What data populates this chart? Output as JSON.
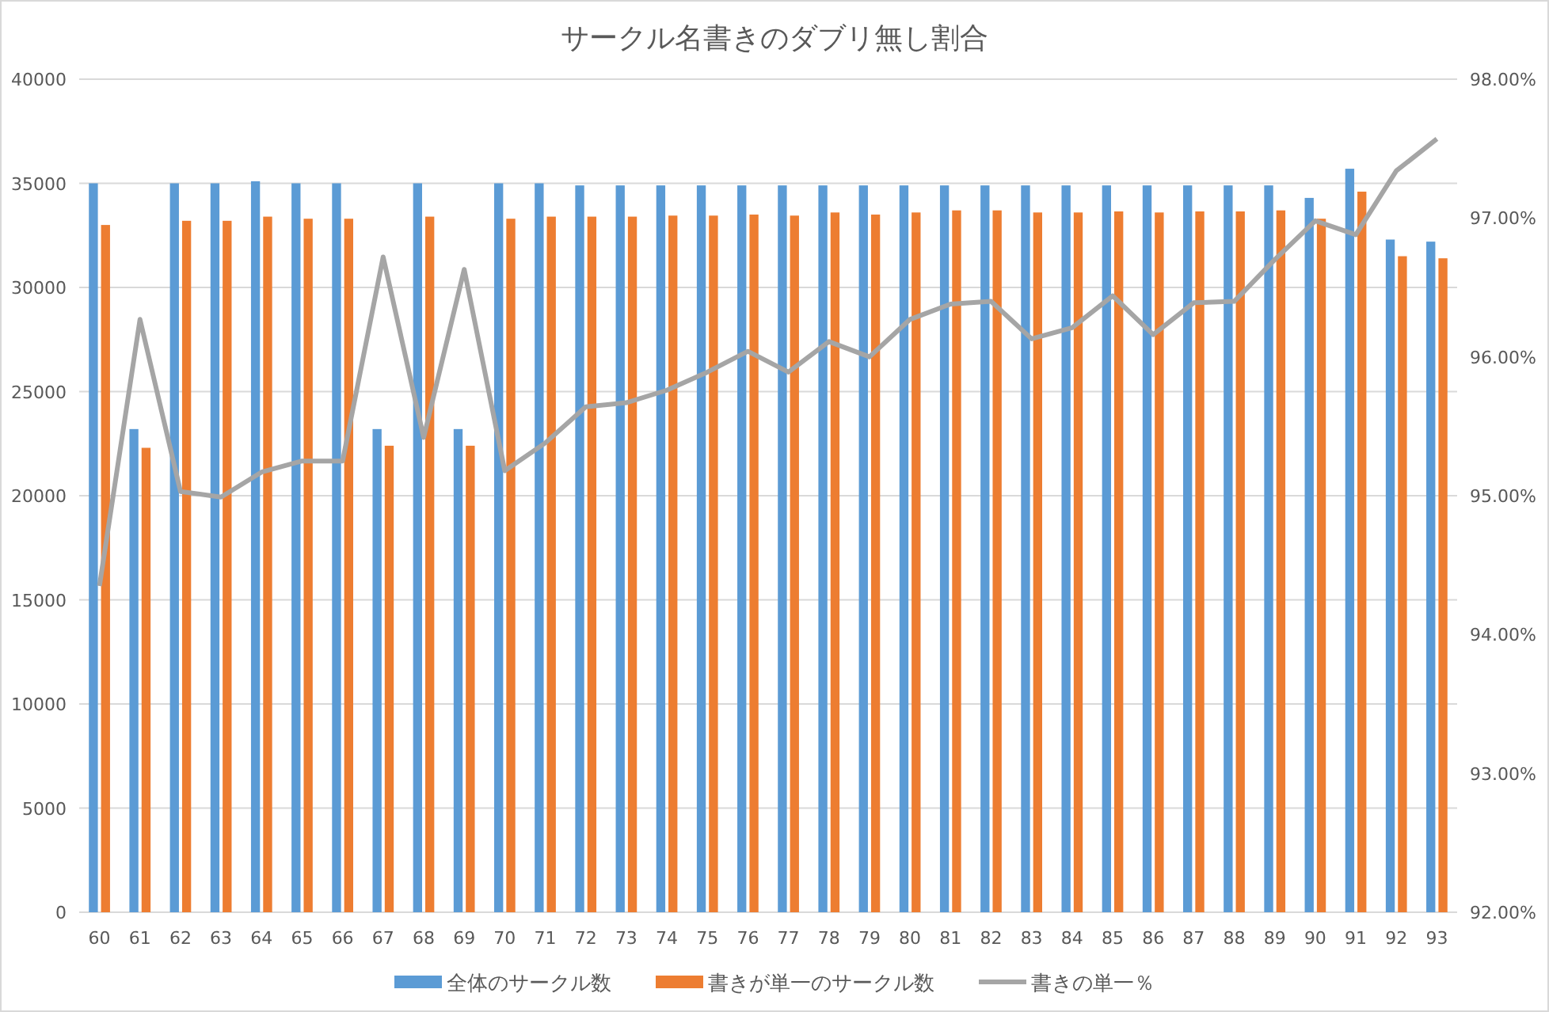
{
  "chart_data": {
    "type": "bar",
    "title": "サークル名書きのダブリ無し割合",
    "categories": [
      "60",
      "61",
      "62",
      "63",
      "64",
      "65",
      "66",
      "67",
      "68",
      "69",
      "70",
      "71",
      "72",
      "73",
      "74",
      "75",
      "76",
      "77",
      "78",
      "79",
      "80",
      "81",
      "82",
      "83",
      "84",
      "85",
      "86",
      "87",
      "88",
      "89",
      "90",
      "91",
      "92",
      "93"
    ],
    "series": [
      {
        "name": "全体のサークル数",
        "color": "#5b9bd5",
        "values": [
          35000,
          23200,
          35000,
          35000,
          35100,
          35000,
          35000,
          23200,
          35000,
          23200,
          35000,
          35000,
          34900,
          34900,
          34900,
          34900,
          34900,
          34900,
          34900,
          34900,
          34900,
          34900,
          34900,
          34900,
          34900,
          34900,
          34900,
          34900,
          34900,
          34900,
          34300,
          35700,
          32300,
          32200
        ]
      },
      {
        "name": "書きが単一のサークル数",
        "color": "#ed7d31",
        "values": [
          33000,
          22300,
          33200,
          33200,
          33400,
          33300,
          33300,
          22400,
          33400,
          22400,
          33300,
          33400,
          33400,
          33400,
          33450,
          33450,
          33500,
          33450,
          33600,
          33500,
          33600,
          33700,
          33700,
          33600,
          33600,
          33650,
          33600,
          33650,
          33650,
          33700,
          33300,
          34600,
          31500,
          31400
        ]
      },
      {
        "name": "書きの単一％",
        "type": "line",
        "axis": "y2",
        "color": "#a5a5a5",
        "values": [
          94.35,
          96.27,
          95.03,
          94.99,
          95.17,
          95.25,
          95.25,
          96.72,
          95.42,
          96.63,
          95.18,
          95.38,
          95.64,
          95.67,
          95.76,
          95.89,
          96.04,
          95.89,
          96.11,
          96.0,
          96.27,
          96.38,
          96.4,
          96.13,
          96.21,
          96.44,
          96.16,
          96.39,
          96.4,
          96.7,
          96.98,
          96.88,
          97.34,
          97.57
        ]
      }
    ],
    "ylim": [
      0,
      40000
    ],
    "yticks": [
      0,
      5000,
      10000,
      15000,
      20000,
      25000,
      30000,
      35000,
      40000
    ],
    "y2lim": [
      92,
      98
    ],
    "y2ticks": [
      {
        "value": 92,
        "label": "92.00%"
      },
      {
        "value": 93,
        "label": "93.00%"
      },
      {
        "value": 94,
        "label": "94.00%"
      },
      {
        "value": 95,
        "label": "95.00%"
      },
      {
        "value": 96,
        "label": "96.00%"
      },
      {
        "value": 97,
        "label": "97.00%"
      },
      {
        "value": 98,
        "label": "98.00%"
      }
    ],
    "grid": "y",
    "legend": "bottom",
    "marker": "none",
    "line_style": "solid"
  }
}
